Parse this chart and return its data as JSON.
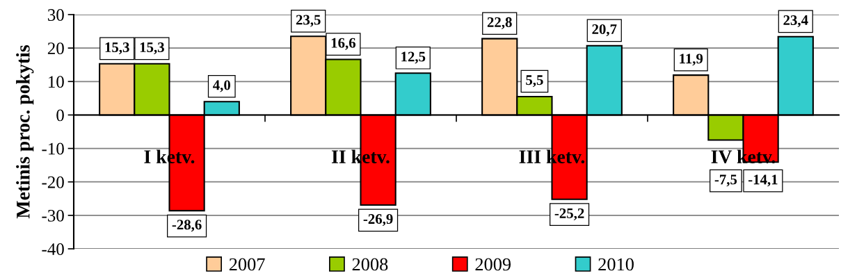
{
  "chart_data": {
    "type": "bar",
    "ylabel": "Metinis proc. pokytis",
    "categories": [
      "I ketv.",
      "II ketv.",
      "III ketv.",
      "IV ketv."
    ],
    "series": [
      {
        "name": "2007",
        "color": "#ffcc99",
        "values": [
          15.3,
          23.5,
          22.8,
          11.9
        ],
        "value_labels": [
          "15,3",
          "23,5",
          "22,8",
          "11,9"
        ]
      },
      {
        "name": "2008",
        "color": "#99cc00",
        "values": [
          15.3,
          16.6,
          5.5,
          -7.5
        ],
        "value_labels": [
          "15,3",
          "16,6",
          "5,5",
          "-7,5"
        ]
      },
      {
        "name": "2009",
        "color": "#ff0000",
        "values": [
          -28.6,
          -26.9,
          -25.2,
          -14.1
        ],
        "value_labels": [
          "-28,6",
          "-26,9",
          "-25,2",
          "-14,1"
        ]
      },
      {
        "name": "2010",
        "color": "#33cccc",
        "values": [
          4.0,
          12.5,
          20.7,
          23.4
        ],
        "value_labels": [
          "4,0",
          "12,5",
          "20,7",
          "23,4"
        ]
      }
    ],
    "ylim": [
      -40,
      30
    ],
    "yticks": [
      -40,
      -30,
      -20,
      -10,
      0,
      10,
      20,
      30
    ],
    "grid": "y",
    "legend": "bottom"
  }
}
